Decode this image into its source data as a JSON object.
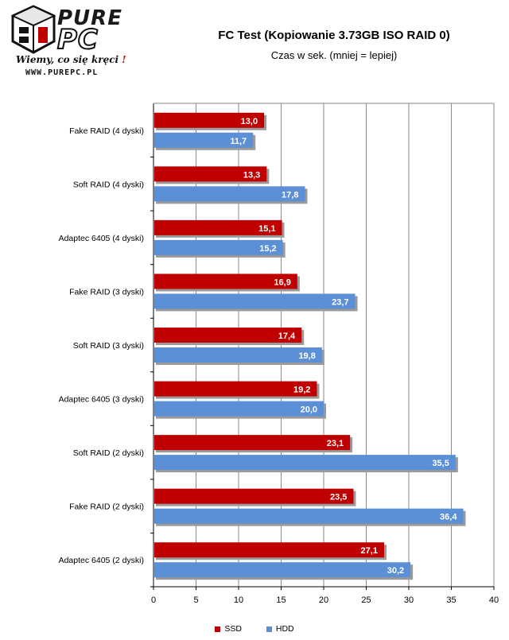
{
  "logo": {
    "word1": "PURE",
    "word2": "PC",
    "slogan": "Wiemy, co się kręci",
    "slogan_mark": "!",
    "url": "WWW.PUREPC.PL"
  },
  "chart_data": {
    "type": "bar",
    "orientation": "horizontal",
    "title": "FC Test (Kopiowanie 3.73GB ISO RAID 0)",
    "subtitle": "Czas w sek.  (mniej = lepiej)",
    "categories": [
      "Fake RAID (4 dyski)",
      "Soft RAID (4 dyski)",
      "Adaptec 6405 (4 dyski)",
      "Fake RAID (3 dyski)",
      "Soft RAID (3 dyski)",
      "Adaptec 6405 (3 dyski)",
      "Soft RAID (2 dyski)",
      "Fake RAID (2 dyski)",
      "Adaptec 6405 (2 dyski)"
    ],
    "series": [
      {
        "name": "SSD",
        "color": "#c00000",
        "values": [
          13.0,
          13.3,
          15.1,
          16.9,
          17.4,
          19.2,
          23.1,
          23.5,
          27.1
        ]
      },
      {
        "name": "HDD",
        "color": "#5b8fd6",
        "values": [
          11.7,
          17.8,
          15.2,
          23.7,
          19.8,
          20.0,
          35.5,
          36.4,
          30.2
        ]
      }
    ],
    "value_labels": {
      "SSD": [
        "13,0",
        "13,3",
        "15,1",
        "16,9",
        "17,4",
        "19,2",
        "23,1",
        "23,5",
        "27,1"
      ],
      "HDD": [
        "11,7",
        "17,8",
        "15,2",
        "23,7",
        "19,8",
        "20,0",
        "35,5",
        "36,4",
        "30,2"
      ]
    },
    "xlim": [
      0,
      40
    ],
    "xticks": [
      "0",
      "5",
      "10",
      "15",
      "20",
      "25",
      "30",
      "35",
      "40"
    ],
    "xtick_values": [
      0,
      5,
      10,
      15,
      20,
      25,
      30,
      35,
      40
    ],
    "grid": true,
    "legend_position": "bottom"
  }
}
